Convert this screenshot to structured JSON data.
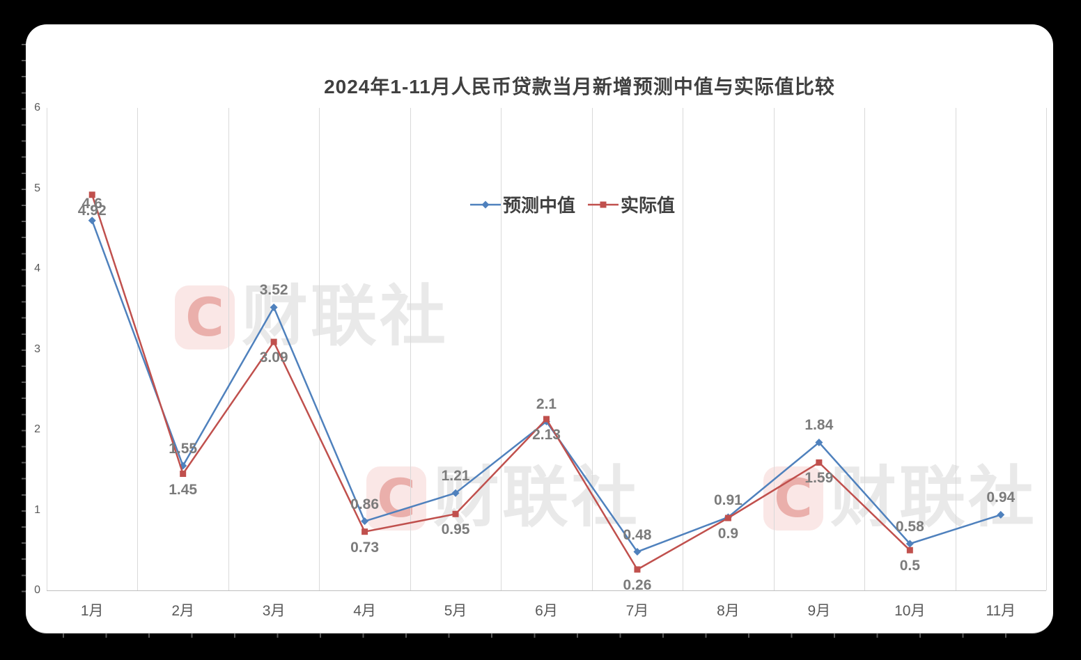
{
  "title": "2024年1-11月人民币贷款当月新增预测中值与实际值比较",
  "colors": {
    "page_background": "#000000",
    "card_background": "#ffffff",
    "title_text": "#404040",
    "axis_text": "#595959",
    "data_label_text": "#7b7b7b",
    "gridline": "#d9d9d9",
    "axis_line": "#bfbfbf",
    "forecast_blue": "#4f81bd",
    "actual_red": "#c0504d",
    "watermark_red": "#d7463c"
  },
  "watermark": {
    "logo_letter": "C",
    "text": "财联社"
  },
  "chart_data": {
    "type": "line",
    "title": "2024年1-11月人民币贷款当月新增预测中值与实际值比较",
    "xlabel": "",
    "ylabel": "",
    "ylim": [
      0,
      6
    ],
    "yticks": [
      "0",
      "1",
      "2",
      "3",
      "4",
      "5",
      "6"
    ],
    "grid": "vertical-only",
    "legend_position": "inside-top-center",
    "categories": [
      "1月",
      "2月",
      "3月",
      "4月",
      "5月",
      "6月",
      "7月",
      "8月",
      "9月",
      "10月",
      "11月"
    ],
    "series": [
      {
        "name": "预测中值",
        "color": "#4f81bd",
        "marker": "diamond",
        "values": [
          4.6,
          1.55,
          3.52,
          0.86,
          1.21,
          2.1,
          0.48,
          0.91,
          1.84,
          0.58,
          0.94
        ],
        "labels": [
          "4.6",
          "1.55",
          "3.52",
          "0.86",
          "1.21",
          "2.1",
          "0.48",
          "0.91",
          "1.84",
          "0.58",
          "0.94"
        ]
      },
      {
        "name": "实际值",
        "color": "#c0504d",
        "marker": "square",
        "values": [
          4.92,
          1.45,
          3.09,
          0.73,
          0.95,
          2.13,
          0.26,
          0.9,
          1.59,
          0.5
        ],
        "labels": [
          "4.92",
          "1.45",
          "3.09",
          "0.73",
          "0.95",
          "2.13",
          "0.26",
          "0.9",
          "1.59",
          "0.5"
        ]
      }
    ]
  }
}
